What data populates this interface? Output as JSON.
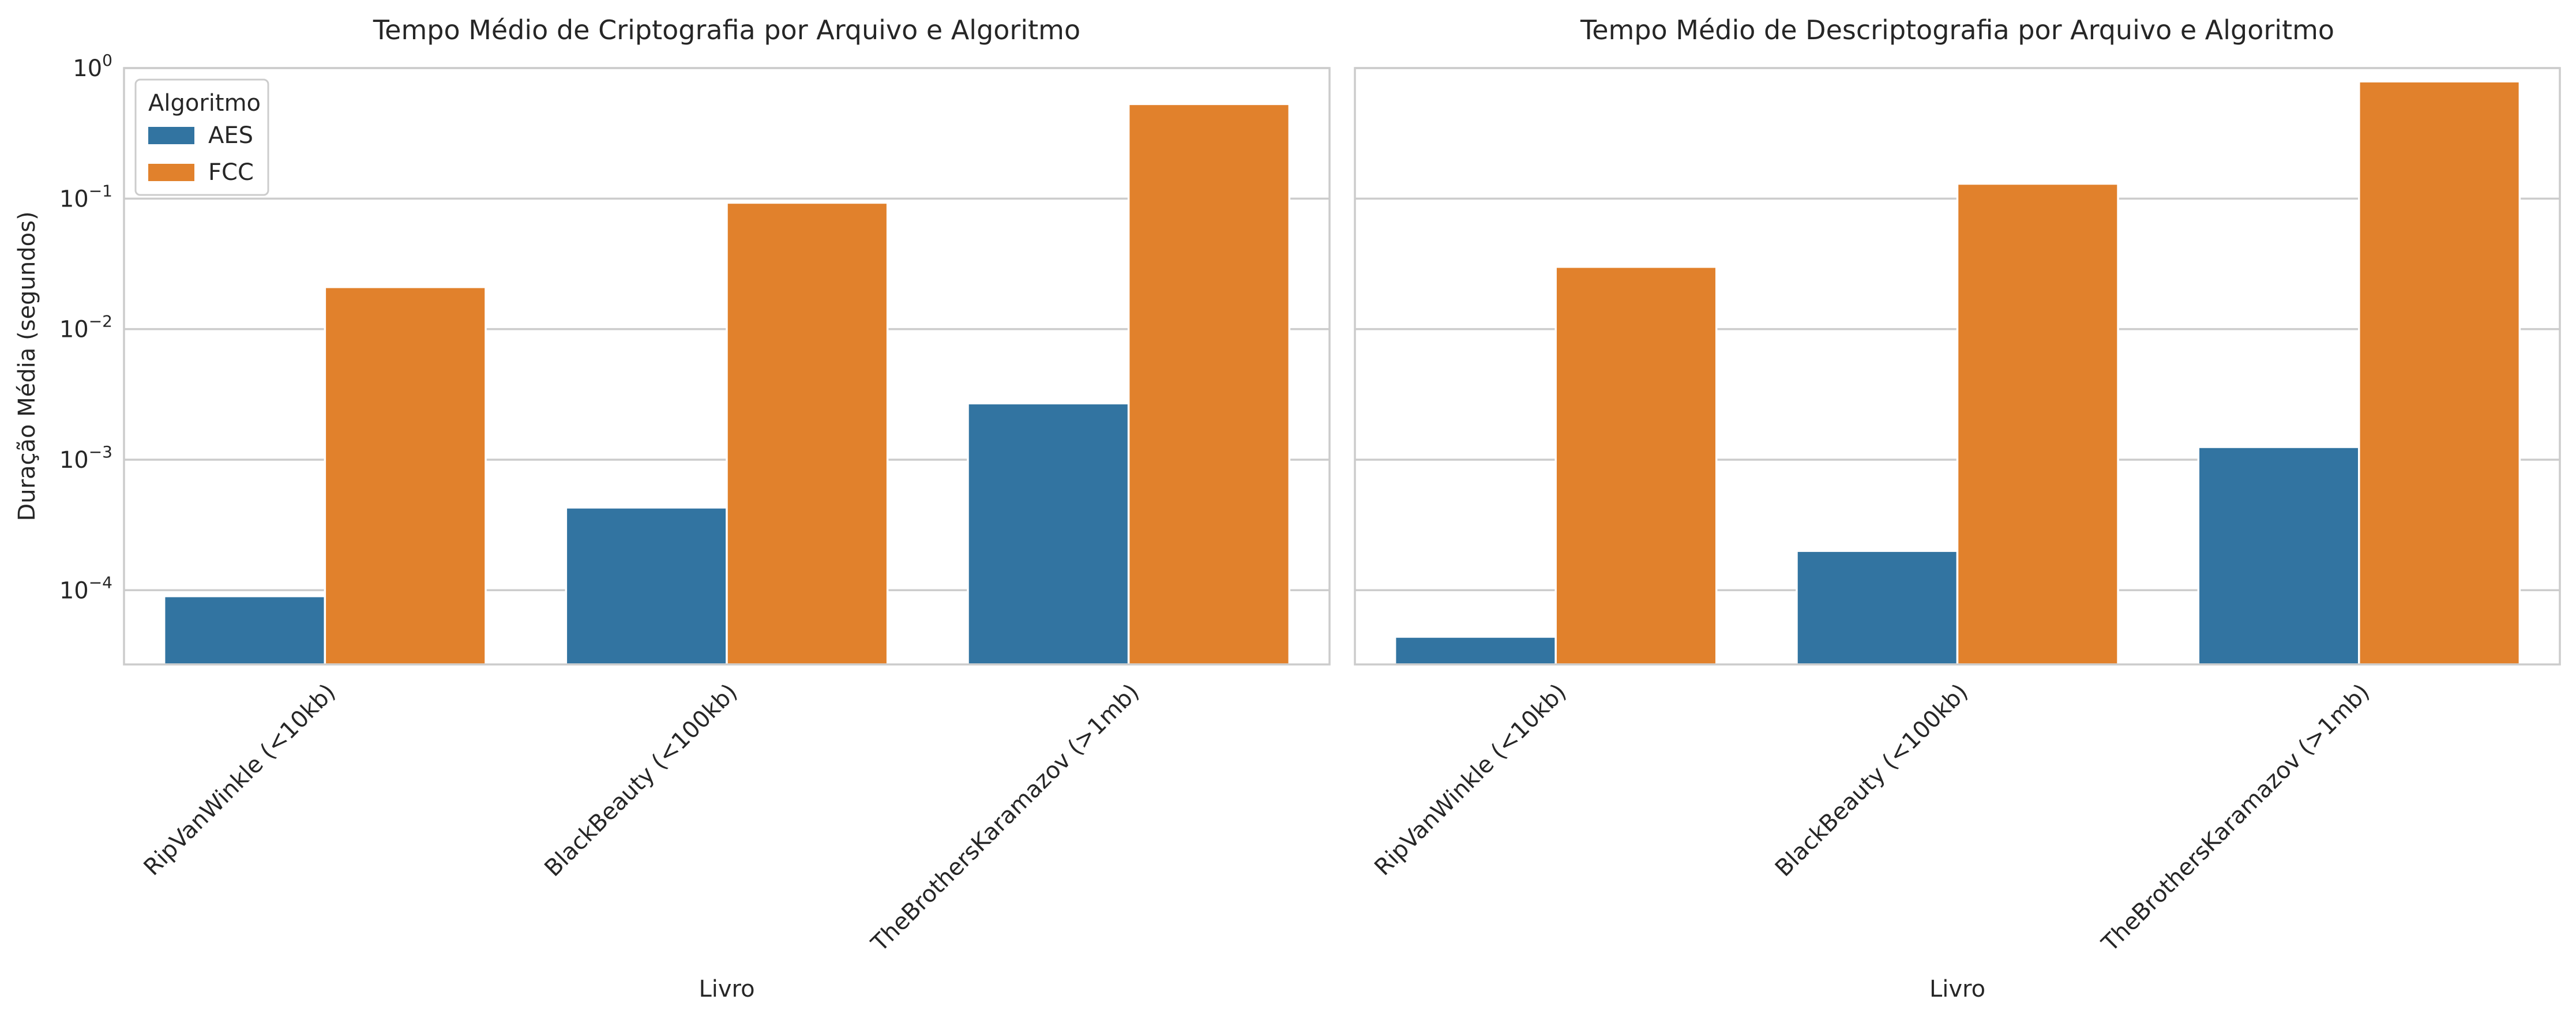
{
  "chart_data": [
    {
      "type": "bar",
      "title": "Tempo Médio de Criptografia por Arquivo e Algoritmo",
      "xlabel": "Livro",
      "ylabel": "Duração Média (segundos)",
      "yscale": "log",
      "ylim": [
        2.7e-05,
        1.0
      ],
      "yticks": [
        {
          "value": 0.0001,
          "mantissa": "10",
          "exponent": "−4"
        },
        {
          "value": 0.001,
          "mantissa": "10",
          "exponent": "−3"
        },
        {
          "value": 0.01,
          "mantissa": "10",
          "exponent": "−2"
        },
        {
          "value": 0.1,
          "mantissa": "10",
          "exponent": "−1"
        },
        {
          "value": 1,
          "mantissa": "10",
          "exponent": "0"
        }
      ],
      "grid": true,
      "legend": {
        "title": "Algoritmo",
        "position": "top-left"
      },
      "categories": [
        "RipVanWinkle (<10kb)",
        "BlackBeauty (<100kb)",
        "TheBrothersKaramazov (>1mb)"
      ],
      "series": [
        {
          "name": "AES",
          "color": "#3274a1",
          "values": [
            9e-05,
            0.00043,
            0.0027
          ]
        },
        {
          "name": "FCC",
          "color": "#e1812c",
          "values": [
            0.021,
            0.093,
            0.53
          ]
        }
      ]
    },
    {
      "type": "bar",
      "title": "Tempo Médio de Descriptografia por Arquivo e Algoritmo",
      "xlabel": "Livro",
      "ylabel": "",
      "yscale": "log",
      "ylim": [
        2.7e-05,
        1.0
      ],
      "yticks": [
        {
          "value": 0.0001,
          "mantissa": "",
          "exponent": ""
        },
        {
          "value": 0.001,
          "mantissa": "",
          "exponent": ""
        },
        {
          "value": 0.01,
          "mantissa": "",
          "exponent": ""
        },
        {
          "value": 0.1,
          "mantissa": "",
          "exponent": ""
        },
        {
          "value": 1,
          "mantissa": "",
          "exponent": ""
        }
      ],
      "grid": true,
      "legend": null,
      "categories": [
        "RipVanWinkle (<10kb)",
        "BlackBeauty (<100kb)",
        "TheBrothersKaramazov (>1mb)"
      ],
      "series": [
        {
          "name": "AES",
          "color": "#3274a1",
          "values": [
            4.4e-05,
            0.0002,
            0.00125
          ]
        },
        {
          "name": "FCC",
          "color": "#e1812c",
          "values": [
            0.03,
            0.13,
            0.79
          ]
        }
      ]
    }
  ]
}
